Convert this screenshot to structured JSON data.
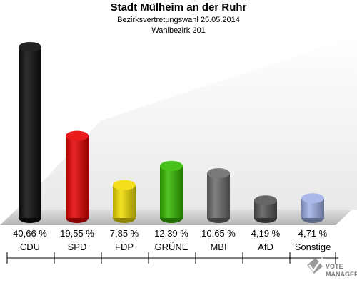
{
  "header": {
    "title": "Stadt Mülheim an der Ruhr",
    "subtitle": "Bezirksvertretungswahl 25.05.2014",
    "district": "Wahlbezirk 201"
  },
  "logo": {
    "line1": "VOTE",
    "line2": "MANAGER",
    "icon": "ballot-check-icon"
  },
  "chart_data": {
    "type": "bar",
    "title": "Stadt Mülheim an der Ruhr",
    "subtitle": "Bezirksvertretungswahl 25.05.2014 · Wahlbezirk 201",
    "xlabel": "",
    "ylabel": "",
    "unit": "%",
    "ylim": [
      0,
      42
    ],
    "grid": false,
    "legend": "none",
    "categories": [
      "CDU",
      "SPD",
      "FDP",
      "GRÜNE",
      "MBI",
      "AfD",
      "Sonstige"
    ],
    "values": [
      40.66,
      19.55,
      7.85,
      12.39,
      10.65,
      4.19,
      4.71
    ],
    "labels": [
      "40,66 %",
      "19,55 %",
      "7,85 %",
      "12,39 %",
      "10,65 %",
      "4,19 %",
      "4,71 %"
    ],
    "colors": [
      "#0a0a0a",
      "#e60000",
      "#f2dd00",
      "#33bb00",
      "#6b6b6b",
      "#555555",
      "#9fb0e6"
    ]
  }
}
